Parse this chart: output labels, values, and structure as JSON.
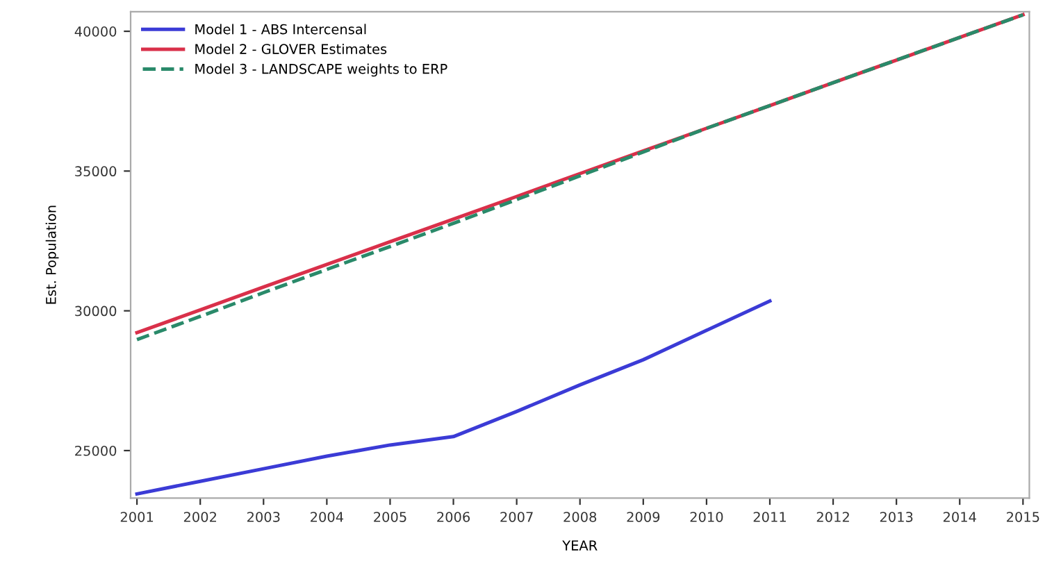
{
  "chart_data": {
    "type": "line",
    "xlabel": "YEAR",
    "ylabel": "Est. Population",
    "x": [
      2001,
      2002,
      2003,
      2004,
      2005,
      2006,
      2007,
      2008,
      2009,
      2010,
      2011,
      2012,
      2013,
      2014,
      2015
    ],
    "series": [
      {
        "name": "Model 1 - ABS Intercensal",
        "color": "#3b3bd6",
        "line_style": "solid",
        "values": [
          23450,
          23900,
          24350,
          24800,
          25200,
          25500,
          26400,
          27350,
          28250,
          29300,
          30350,
          null,
          null,
          null,
          null
        ]
      },
      {
        "name": "Model 2 - GLOVER Estimates",
        "color": "#d9304a",
        "line_style": "solid",
        "values": [
          29220,
          30030,
          30850,
          31660,
          32470,
          33280,
          34090,
          34910,
          35720,
          36530,
          37340,
          38160,
          38970,
          39780,
          40590
        ]
      },
      {
        "name": "Model 3 - LANDSCAPE weights to ERP",
        "color": "#2a8a6a",
        "line_style": "dashed",
        "values": [
          28970,
          29800,
          30650,
          31480,
          32300,
          33130,
          33980,
          34830,
          35680,
          36530,
          37340,
          38160,
          38970,
          39780,
          40590
        ]
      }
    ],
    "xlim": [
      2000.9,
      2015.1
    ],
    "ylim": [
      23300,
      40700
    ],
    "xticks": [
      2001,
      2002,
      2003,
      2004,
      2005,
      2006,
      2007,
      2008,
      2009,
      2010,
      2011,
      2012,
      2013,
      2014,
      2015
    ],
    "yticks": [
      25000,
      30000,
      35000,
      40000
    ],
    "grid": false,
    "legend": "top left",
    "marker": "none"
  }
}
